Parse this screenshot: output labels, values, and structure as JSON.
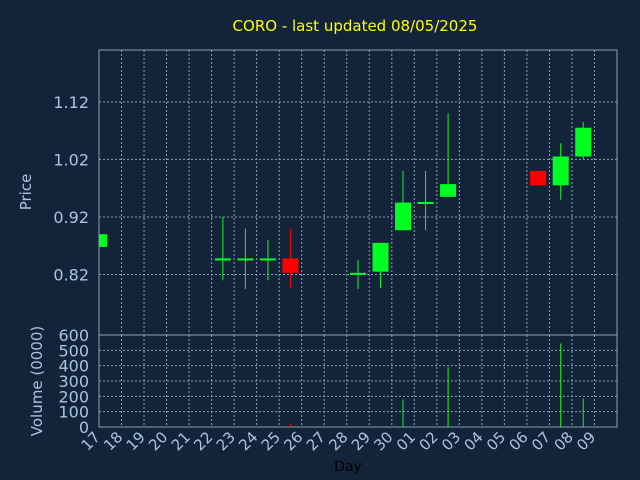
{
  "chart_data": {
    "type": "candlestick",
    "title": "CORO - last updated 08/05/2025",
    "xlabel": "Day",
    "ylabel": "Price",
    "volume_label": "Volume (0000)",
    "grid": true,
    "price_ticks": [
      "0.82",
      "0.92",
      "1.02",
      "1.12"
    ],
    "price_tick_values": [
      0.82,
      0.92,
      1.02,
      1.12
    ],
    "price_range": [
      0.715,
      1.21
    ],
    "volume_ticks": [
      "0",
      "100",
      "200",
      "300",
      "400",
      "500",
      "600"
    ],
    "volume_range": [
      0,
      600
    ],
    "x_labels": [
      "17",
      "18",
      "19",
      "20",
      "21",
      "22",
      "23",
      "24",
      "25",
      "26",
      "27",
      "28",
      "29",
      "30",
      "01",
      "02",
      "03",
      "04",
      "05",
      "06",
      "07",
      "08",
      "09"
    ],
    "candles": [
      {
        "day": "17",
        "open": 0.868,
        "close": 0.89,
        "high": 0.89,
        "low": 0.868,
        "volume": 0
      },
      {
        "day": "22",
        "open": 0.847,
        "close": 0.848,
        "high": 0.92,
        "low": 0.81,
        "volume": 0
      },
      {
        "day": "23",
        "open": 0.847,
        "close": 0.848,
        "high": 0.9,
        "low": 0.795,
        "volume": 0
      },
      {
        "day": "24",
        "open": 0.847,
        "close": 0.848,
        "high": 0.88,
        "low": 0.81,
        "volume": 0
      },
      {
        "day": "25",
        "open": 0.848,
        "close": 0.823,
        "high": 0.9,
        "low": 0.797,
        "volume": 20
      },
      {
        "day": "28",
        "open": 0.822,
        "close": 0.823,
        "high": 0.845,
        "low": 0.795,
        "volume": 0
      },
      {
        "day": "29",
        "open": 0.825,
        "close": 0.875,
        "high": 0.875,
        "low": 0.797,
        "volume": 0
      },
      {
        "day": "30",
        "open": 0.897,
        "close": 0.945,
        "high": 1.0,
        "low": 0.897,
        "volume": 180
      },
      {
        "day": "01",
        "open": 0.945,
        "close": 0.946,
        "high": 1.0,
        "low": 0.897,
        "volume": 0
      },
      {
        "day": "02",
        "open": 0.955,
        "close": 0.977,
        "high": 1.1,
        "low": 0.955,
        "volume": 390
      },
      {
        "day": "06",
        "open": 1.0,
        "close": 0.975,
        "high": 1.0,
        "low": 0.975,
        "volume": 0
      },
      {
        "day": "07",
        "open": 0.975,
        "close": 1.025,
        "high": 1.048,
        "low": 0.95,
        "volume": 545
      },
      {
        "day": "08",
        "open": 1.025,
        "close": 1.075,
        "high": 1.085,
        "low": 1.02,
        "volume": 185
      }
    ],
    "colors": {
      "up": "#00ff22",
      "down": "#ff0000",
      "title": "#ffff00",
      "axis_text": "#a8c4e0",
      "frame": "#8a9fb5",
      "grid": "#8a9fb5",
      "background": "#13243a"
    }
  }
}
